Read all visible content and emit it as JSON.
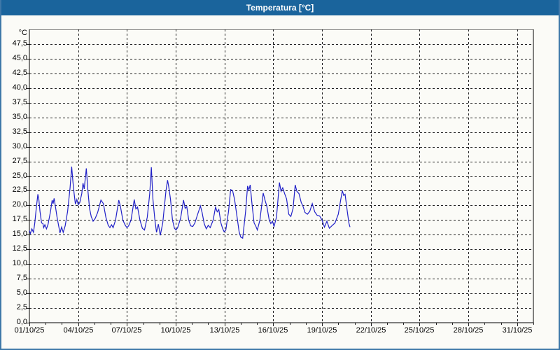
{
  "window": {
    "title": "Temperatura [°C]",
    "titlebar_color": "#1a649c",
    "border_color": "#3e78a8",
    "background_color": "#fbfbf7"
  },
  "chart_data": {
    "type": "line",
    "title": "Temperatura [°C]",
    "y_unit_label": "°C",
    "ylabel": "",
    "xlabel": "",
    "ylim": [
      0,
      50
    ],
    "x_total_days": 31,
    "grid": "dashed",
    "legend": "none",
    "line_color": "#2121c8",
    "y_tick_values": [
      0,
      2.5,
      5,
      7.5,
      10,
      12.5,
      15,
      17.5,
      20,
      22.5,
      25,
      27.5,
      30,
      32.5,
      35,
      37.5,
      40,
      42.5,
      45,
      47.5
    ],
    "y_tick_labels": [
      "0,0",
      "2,5",
      "5,0",
      "7,5",
      "10,0",
      "12,5",
      "15,0",
      "17,5",
      "20,0",
      "22,5",
      "25,0",
      "27,5",
      "30,0",
      "32,5",
      "35,0",
      "37,5",
      "40,0",
      "42,5",
      "45,0",
      "47,5"
    ],
    "x_tick_day_offsets": [
      0,
      3,
      6,
      9,
      12,
      15,
      18,
      21,
      24,
      27,
      30
    ],
    "x_tick_labels": [
      "01/10/25",
      "04/10/25",
      "07/10/25",
      "10/10/25",
      "13/10/25",
      "16/10/25",
      "19/10/25",
      "22/10/25",
      "25/10/25",
      "28/10/25",
      "31/10/25"
    ],
    "series": [
      {
        "name": "Temperatura",
        "unit": "°C",
        "x_format": "days since 01/10/25 00:00",
        "points": [
          [
            0.0,
            15.7
          ],
          [
            0.06,
            15.2
          ],
          [
            0.15,
            16.0
          ],
          [
            0.25,
            15.4
          ],
          [
            0.33,
            17.0
          ],
          [
            0.42,
            19.5
          ],
          [
            0.52,
            21.9
          ],
          [
            0.58,
            21.0
          ],
          [
            0.65,
            19.0
          ],
          [
            0.75,
            17.0
          ],
          [
            0.83,
            16.9
          ],
          [
            0.88,
            16.2
          ],
          [
            0.95,
            16.7
          ],
          [
            1.05,
            16.0
          ],
          [
            1.15,
            16.8
          ],
          [
            1.3,
            19.0
          ],
          [
            1.4,
            20.9
          ],
          [
            1.46,
            20.3
          ],
          [
            1.52,
            21.2
          ],
          [
            1.6,
            19.8
          ],
          [
            1.7,
            18.0
          ],
          [
            1.8,
            16.5
          ],
          [
            1.88,
            15.3
          ],
          [
            1.98,
            16.3
          ],
          [
            2.08,
            15.4
          ],
          [
            2.2,
            16.5
          ],
          [
            2.35,
            19.0
          ],
          [
            2.5,
            23.0
          ],
          [
            2.6,
            26.6
          ],
          [
            2.68,
            24.0
          ],
          [
            2.75,
            22.0
          ],
          [
            2.83,
            20.2
          ],
          [
            2.92,
            21.0
          ],
          [
            3.0,
            20.1
          ],
          [
            3.1,
            20.5
          ],
          [
            3.22,
            22.0
          ],
          [
            3.3,
            23.8
          ],
          [
            3.37,
            22.8
          ],
          [
            3.5,
            26.3
          ],
          [
            3.6,
            22.5
          ],
          [
            3.7,
            19.5
          ],
          [
            3.8,
            18.1
          ],
          [
            3.92,
            17.3
          ],
          [
            4.05,
            17.8
          ],
          [
            4.2,
            18.8
          ],
          [
            4.4,
            20.9
          ],
          [
            4.55,
            20.3
          ],
          [
            4.7,
            18.0
          ],
          [
            4.85,
            16.6
          ],
          [
            4.95,
            16.2
          ],
          [
            5.05,
            16.7
          ],
          [
            5.15,
            16.2
          ],
          [
            5.3,
            17.5
          ],
          [
            5.5,
            20.9
          ],
          [
            5.6,
            19.8
          ],
          [
            5.75,
            17.5
          ],
          [
            5.9,
            16.6
          ],
          [
            6.0,
            16.2
          ],
          [
            6.1,
            16.5
          ],
          [
            6.25,
            17.5
          ],
          [
            6.45,
            21.0
          ],
          [
            6.55,
            19.4
          ],
          [
            6.65,
            19.7
          ],
          [
            6.8,
            17.5
          ],
          [
            6.95,
            16.1
          ],
          [
            7.08,
            15.8
          ],
          [
            7.25,
            18.0
          ],
          [
            7.4,
            22.0
          ],
          [
            7.5,
            26.5
          ],
          [
            7.6,
            21.0
          ],
          [
            7.72,
            17.5
          ],
          [
            7.82,
            15.4
          ],
          [
            7.93,
            16.8
          ],
          [
            8.05,
            14.9
          ],
          [
            8.2,
            17.0
          ],
          [
            8.4,
            22.5
          ],
          [
            8.5,
            24.3
          ],
          [
            8.58,
            23.0
          ],
          [
            8.68,
            21.0
          ],
          [
            8.8,
            17.5
          ],
          [
            8.92,
            16.1
          ],
          [
            9.02,
            15.8
          ],
          [
            9.12,
            16.2
          ],
          [
            9.3,
            17.8
          ],
          [
            9.48,
            20.9
          ],
          [
            9.58,
            19.5
          ],
          [
            9.68,
            19.8
          ],
          [
            9.8,
            17.5
          ],
          [
            9.92,
            16.5
          ],
          [
            10.05,
            16.4
          ],
          [
            10.18,
            17.0
          ],
          [
            10.35,
            18.5
          ],
          [
            10.52,
            19.9
          ],
          [
            10.62,
            18.8
          ],
          [
            10.75,
            16.9
          ],
          [
            10.88,
            16.0
          ],
          [
            11.0,
            16.6
          ],
          [
            11.12,
            16.2
          ],
          [
            11.3,
            17.5
          ],
          [
            11.45,
            19.7
          ],
          [
            11.55,
            18.9
          ],
          [
            11.65,
            19.3
          ],
          [
            11.78,
            17.0
          ],
          [
            11.88,
            16.1
          ],
          [
            11.98,
            15.5
          ],
          [
            12.08,
            15.8
          ],
          [
            12.25,
            19.0
          ],
          [
            12.38,
            22.7
          ],
          [
            12.5,
            22.5
          ],
          [
            12.62,
            21.0
          ],
          [
            12.75,
            18.5
          ],
          [
            12.9,
            15.5
          ],
          [
            13.0,
            14.6
          ],
          [
            13.12,
            14.4
          ],
          [
            13.3,
            19.0
          ],
          [
            13.42,
            23.3
          ],
          [
            13.5,
            22.6
          ],
          [
            13.58,
            23.5
          ],
          [
            13.7,
            20.0
          ],
          [
            13.82,
            17.0
          ],
          [
            13.92,
            16.5
          ],
          [
            14.02,
            15.8
          ],
          [
            14.18,
            17.5
          ],
          [
            14.38,
            22.1
          ],
          [
            14.5,
            20.8
          ],
          [
            14.6,
            19.9
          ],
          [
            14.75,
            17.5
          ],
          [
            14.85,
            16.9
          ],
          [
            14.95,
            17.3
          ],
          [
            15.05,
            16.4
          ],
          [
            15.2,
            18.0
          ],
          [
            15.38,
            23.9
          ],
          [
            15.48,
            22.4
          ],
          [
            15.58,
            23.0
          ],
          [
            15.7,
            22.0
          ],
          [
            15.82,
            21.1
          ],
          [
            15.95,
            18.5
          ],
          [
            16.08,
            18.1
          ],
          [
            16.22,
            19.5
          ],
          [
            16.35,
            23.5
          ],
          [
            16.45,
            22.4
          ],
          [
            16.58,
            22.0
          ],
          [
            16.72,
            20.5
          ],
          [
            16.82,
            19.9
          ],
          [
            16.95,
            18.8
          ],
          [
            17.1,
            18.5
          ],
          [
            17.25,
            19.0
          ],
          [
            17.4,
            20.3
          ],
          [
            17.55,
            18.9
          ],
          [
            17.7,
            18.3
          ],
          [
            17.85,
            18.2
          ],
          [
            18.0,
            17.5
          ],
          [
            18.15,
            16.3
          ],
          [
            18.3,
            17.3
          ],
          [
            18.45,
            16.1
          ],
          [
            18.6,
            16.5
          ],
          [
            18.8,
            17.0
          ],
          [
            19.0,
            18.5
          ],
          [
            19.15,
            21.0
          ],
          [
            19.25,
            22.5
          ],
          [
            19.33,
            21.7
          ],
          [
            19.42,
            21.9
          ],
          [
            19.55,
            19.0
          ],
          [
            19.65,
            17.0
          ],
          [
            19.72,
            16.3
          ]
        ]
      }
    ]
  }
}
